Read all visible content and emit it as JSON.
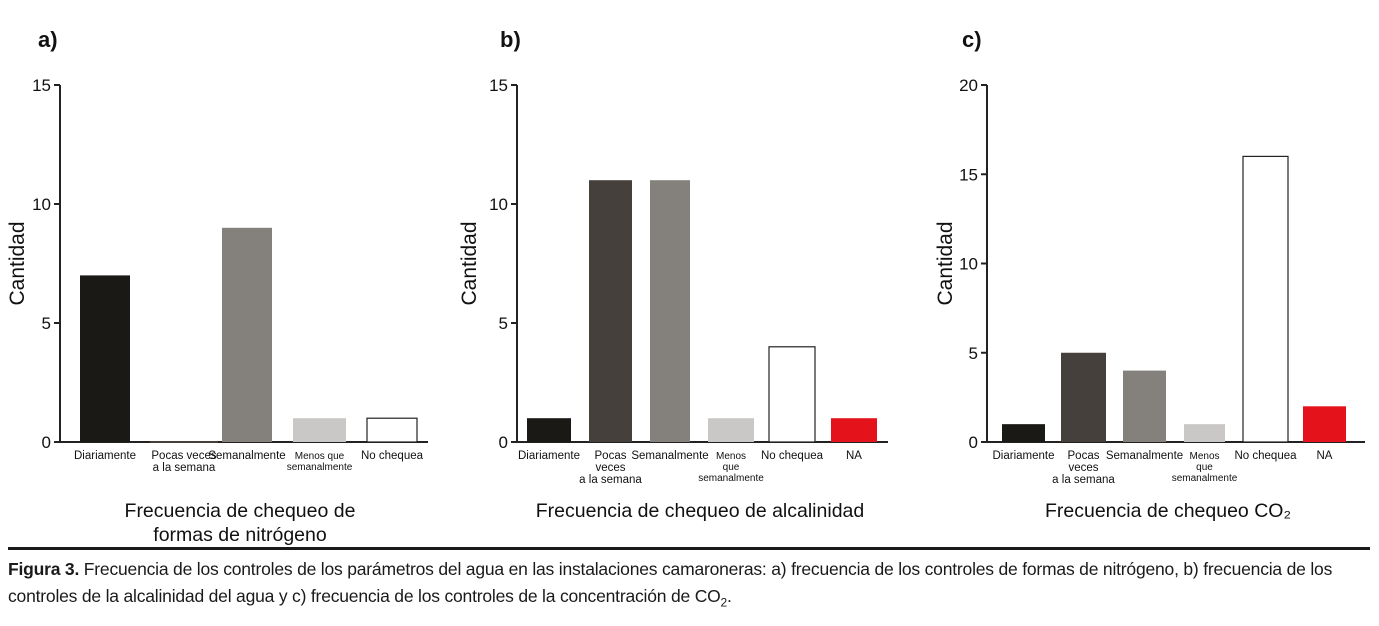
{
  "chart_data": [
    {
      "panel": "a)",
      "type": "bar",
      "ylabel": "Cantidad",
      "ylim": [
        0,
        15
      ],
      "yticks": [
        0,
        5,
        10,
        15
      ],
      "title_lines": [
        "Frecuencia de chequeo de",
        "formas de nitrógeno"
      ],
      "categories": [
        {
          "label": [
            "Diariamente"
          ],
          "value": 7,
          "color": "#1b1915",
          "small": false
        },
        {
          "label": [
            "Pocas veces",
            "a la semana"
          ],
          "value": 0,
          "color": "#45403c",
          "small": false
        },
        {
          "label": [
            "Semanalmente"
          ],
          "value": 9,
          "color": "#84807c",
          "small": false
        },
        {
          "label": [
            "Menos que",
            "semanalmente"
          ],
          "value": 1,
          "color": "#c9c8c6",
          "small": true
        },
        {
          "label": [
            "No chequea"
          ],
          "value": 1,
          "color": "#ffffff",
          "small": false
        }
      ]
    },
    {
      "panel": "b)",
      "type": "bar",
      "ylabel": "Cantidad",
      "ylim": [
        0,
        15
      ],
      "yticks": [
        0,
        5,
        10,
        15
      ],
      "title_lines": [
        "Frecuencia de chequeo de alcalinidad"
      ],
      "categories": [
        {
          "label": [
            "Diariamente"
          ],
          "value": 1,
          "color": "#1b1915",
          "small": false
        },
        {
          "label": [
            "Pocas",
            "veces",
            "a la semana"
          ],
          "value": 11,
          "color": "#45403c",
          "small": false
        },
        {
          "label": [
            "Semanalmente"
          ],
          "value": 11,
          "color": "#84807c",
          "small": false
        },
        {
          "label": [
            "Menos",
            "que",
            "semanalmente"
          ],
          "value": 1,
          "color": "#c9c8c6",
          "small": true
        },
        {
          "label": [
            "No chequea"
          ],
          "value": 4,
          "color": "#ffffff",
          "small": false
        },
        {
          "label": [
            "NA"
          ],
          "value": 1,
          "color": "#e3121b",
          "small": false
        }
      ]
    },
    {
      "panel": "c)",
      "type": "bar",
      "ylabel": "Cantidad",
      "ylim": [
        0,
        20
      ],
      "yticks": [
        0,
        5,
        10,
        15,
        20
      ],
      "title_lines": [
        "Frecuencia de chequeo CO₂"
      ],
      "categories": [
        {
          "label": [
            "Diariamente"
          ],
          "value": 1,
          "color": "#1b1915",
          "small": false
        },
        {
          "label": [
            "Pocas",
            "veces",
            "a la semana"
          ],
          "value": 5,
          "color": "#45403c",
          "small": false
        },
        {
          "label": [
            "Semanalmente"
          ],
          "value": 4,
          "color": "#84807c",
          "small": false
        },
        {
          "label": [
            "Menos",
            "que",
            "semanalmente"
          ],
          "value": 1,
          "color": "#c9c8c6",
          "small": true
        },
        {
          "label": [
            "No chequea"
          ],
          "value": 16,
          "color": "#ffffff",
          "small": false
        },
        {
          "label": [
            "NA"
          ],
          "value": 2,
          "color": "#e3121b",
          "small": false
        }
      ]
    }
  ],
  "caption": {
    "label": "Figura 3.",
    "text_1": " Frecuencia de los controles de los parámetros del agua en las instalaciones camaroneras: a) frecuencia de los controles de formas de nitrógeno, b) frecuencia de los controles de la alcalinidad del agua y c) frecuencia de los controles de la concentración de CO",
    "sub": "2",
    "text_2": "."
  }
}
